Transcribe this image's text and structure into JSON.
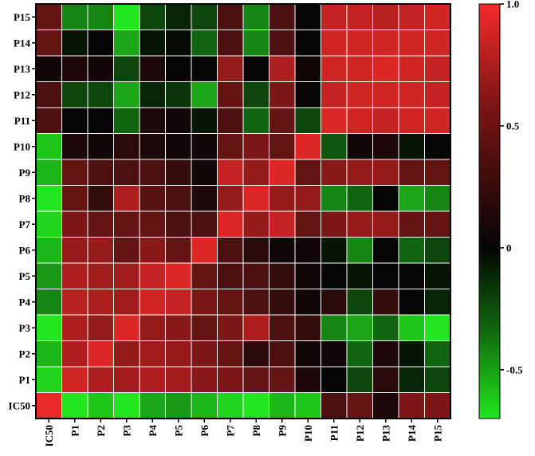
{
  "chart_data": {
    "type": "heatmap",
    "title": "",
    "xlabel": "",
    "ylabel": "",
    "x_labels": [
      "IC50",
      "P1",
      "P2",
      "P3",
      "P4",
      "P5",
      "P6",
      "P7",
      "P8",
      "P9",
      "P10",
      "P11",
      "P12",
      "P13",
      "P14",
      "P15"
    ],
    "y_labels": [
      "P15",
      "P14",
      "P13",
      "P12",
      "P11",
      "P10",
      "P9",
      "P8",
      "P7",
      "P6",
      "P5",
      "P4",
      "P3",
      "P2",
      "P1",
      "IC50"
    ],
    "colorbar": {
      "min": -0.7,
      "max": 1.0,
      "ticks": [
        1.0,
        0.5,
        0,
        -0.5
      ],
      "tick_labels": [
        "1.0",
        "0.5",
        "0",
        "-0.5"
      ],
      "colors": {
        "low": "#22e61e",
        "mid": "#050505",
        "high": "#f52a2a"
      }
    },
    "grid": true,
    "values": [
      [
        0.4,
        -0.4,
        -0.4,
        -0.7,
        -0.2,
        -0.1,
        -0.2,
        0.3,
        -0.4,
        0.3,
        0.0,
        0.8,
        0.8,
        0.75,
        0.8,
        0.85
      ],
      [
        0.4,
        -0.05,
        0.0,
        -0.5,
        -0.05,
        -0.02,
        -0.3,
        0.3,
        -0.4,
        0.3,
        0.0,
        0.85,
        0.85,
        0.85,
        0.85,
        0.85
      ],
      [
        0.05,
        0.1,
        0.05,
        -0.2,
        0.1,
        0.0,
        0.0,
        0.6,
        0.0,
        0.7,
        0.05,
        0.85,
        0.85,
        0.9,
        0.85,
        0.8
      ],
      [
        0.3,
        -0.2,
        -0.2,
        -0.5,
        -0.1,
        -0.15,
        -0.5,
        0.4,
        -0.2,
        0.5,
        0.02,
        0.8,
        0.85,
        0.85,
        0.85,
        0.8
      ],
      [
        0.3,
        0.0,
        0.0,
        -0.3,
        0.1,
        0.05,
        -0.05,
        0.3,
        -0.3,
        0.4,
        -0.2,
        0.9,
        0.85,
        0.8,
        0.85,
        0.85
      ],
      [
        -0.6,
        0.1,
        0.05,
        0.15,
        0.1,
        0.05,
        0.05,
        0.4,
        0.5,
        0.4,
        0.9,
        -0.25,
        0.05,
        0.1,
        -0.05,
        0.0
      ],
      [
        -0.55,
        0.4,
        0.3,
        0.3,
        0.3,
        0.2,
        0.05,
        0.8,
        0.6,
        0.9,
        0.4,
        0.55,
        0.6,
        0.6,
        0.4,
        0.4
      ],
      [
        -0.7,
        0.4,
        0.2,
        0.7,
        0.35,
        0.3,
        0.1,
        0.6,
        0.9,
        0.6,
        0.6,
        -0.4,
        -0.3,
        0.0,
        -0.5,
        -0.4
      ],
      [
        -0.65,
        0.5,
        0.4,
        0.4,
        0.4,
        0.3,
        0.3,
        0.9,
        0.6,
        0.8,
        0.4,
        0.5,
        0.6,
        0.6,
        0.4,
        0.4
      ],
      [
        -0.55,
        0.6,
        0.6,
        0.4,
        0.55,
        0.4,
        0.9,
        0.3,
        0.15,
        0.05,
        0.05,
        -0.05,
        -0.4,
        0.0,
        -0.3,
        -0.2
      ],
      [
        -0.45,
        0.7,
        0.65,
        0.65,
        0.8,
        0.9,
        0.4,
        0.3,
        0.3,
        0.2,
        0.05,
        0.0,
        -0.05,
        0.0,
        0.0,
        -0.05
      ],
      [
        -0.4,
        0.75,
        0.7,
        0.65,
        0.85,
        0.8,
        0.5,
        0.4,
        0.3,
        0.2,
        0.05,
        0.15,
        -0.2,
        0.2,
        0.0,
        -0.1
      ],
      [
        -0.7,
        0.7,
        0.6,
        0.9,
        0.6,
        0.55,
        0.4,
        0.5,
        0.7,
        0.3,
        0.2,
        -0.4,
        -0.5,
        -0.3,
        -0.6,
        -0.8
      ],
      [
        -0.55,
        0.7,
        0.9,
        0.6,
        0.65,
        0.6,
        0.5,
        0.4,
        0.15,
        0.3,
        0.05,
        0.05,
        -0.3,
        0.1,
        -0.05,
        -0.3
      ],
      [
        -0.65,
        0.85,
        0.7,
        0.65,
        0.7,
        0.65,
        0.55,
        0.5,
        0.4,
        0.4,
        0.1,
        0.0,
        -0.2,
        0.15,
        -0.1,
        -0.2
      ],
      [
        0.95,
        -0.7,
        -0.6,
        -0.7,
        -0.5,
        -0.45,
        -0.55,
        -0.65,
        -0.7,
        -0.55,
        -0.6,
        0.3,
        0.4,
        0.1,
        0.5,
        0.5
      ]
    ]
  }
}
